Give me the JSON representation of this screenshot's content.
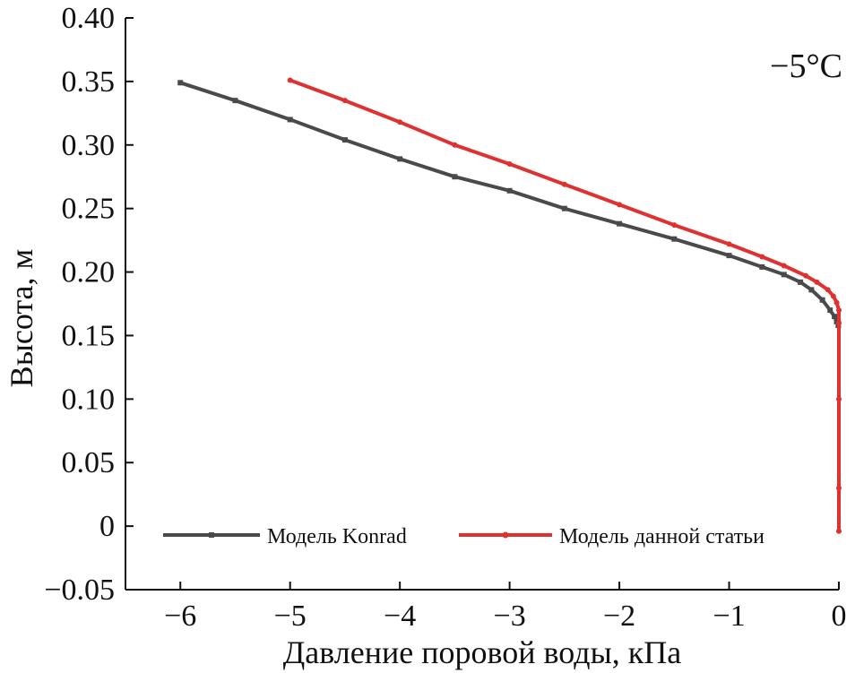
{
  "chart_data": {
    "type": "line",
    "title": "",
    "xlabel": "Давление поровой воды, кПа",
    "ylabel": "Высота, м",
    "xlim": [
      -6.5,
      0
    ],
    "ylim": [
      -0.05,
      0.4
    ],
    "x_ticks": [
      -6,
      -5,
      -4,
      -3,
      -2,
      -1,
      0
    ],
    "x_tick_labels": [
      "−6",
      "−5",
      "−4",
      "−3",
      "−2",
      "−1",
      "0"
    ],
    "y_ticks": [
      -0.05,
      0,
      0.05,
      0.1,
      0.15,
      0.2,
      0.25,
      0.3,
      0.35,
      0.4
    ],
    "y_tick_labels": [
      "−0.05",
      "0",
      "0.05",
      "0.10",
      "0.15",
      "0.20",
      "0.25",
      "0.30",
      "0.35",
      "0.40"
    ],
    "grid": false,
    "legend_position": "bottom-center",
    "annotation": "−5°C",
    "series": [
      {
        "name": "Модель Konrad",
        "color": "#4a4a4a",
        "marker": "square",
        "x": [
          -6.0,
          -5.5,
          -5.0,
          -4.5,
          -4.0,
          -3.5,
          -3.0,
          -2.5,
          -2.0,
          -1.5,
          -1.0,
          -0.7,
          -0.5,
          -0.35,
          -0.25,
          -0.15,
          -0.08,
          -0.04,
          -0.02,
          -0.005
        ],
        "y": [
          0.349,
          0.335,
          0.32,
          0.304,
          0.289,
          0.275,
          0.264,
          0.25,
          0.238,
          0.226,
          0.213,
          0.204,
          0.198,
          0.192,
          0.186,
          0.178,
          0.17,
          0.165,
          0.161,
          0.158
        ]
      },
      {
        "name": "Модель данной статьи",
        "color": "#e03030",
        "marker": "circle",
        "x": [
          -5.0,
          -4.5,
          -4.0,
          -3.5,
          -3.0,
          -2.5,
          -2.0,
          -1.5,
          -1.0,
          -0.7,
          -0.5,
          -0.3,
          -0.2,
          -0.1,
          -0.05,
          -0.02,
          0.0,
          0.0,
          0.0,
          0.0,
          0.0
        ],
        "y": [
          0.351,
          0.335,
          0.318,
          0.3,
          0.285,
          0.269,
          0.253,
          0.237,
          0.222,
          0.212,
          0.205,
          0.197,
          0.192,
          0.186,
          0.181,
          0.176,
          0.17,
          0.16,
          0.1,
          0.03,
          -0.004
        ]
      }
    ]
  }
}
